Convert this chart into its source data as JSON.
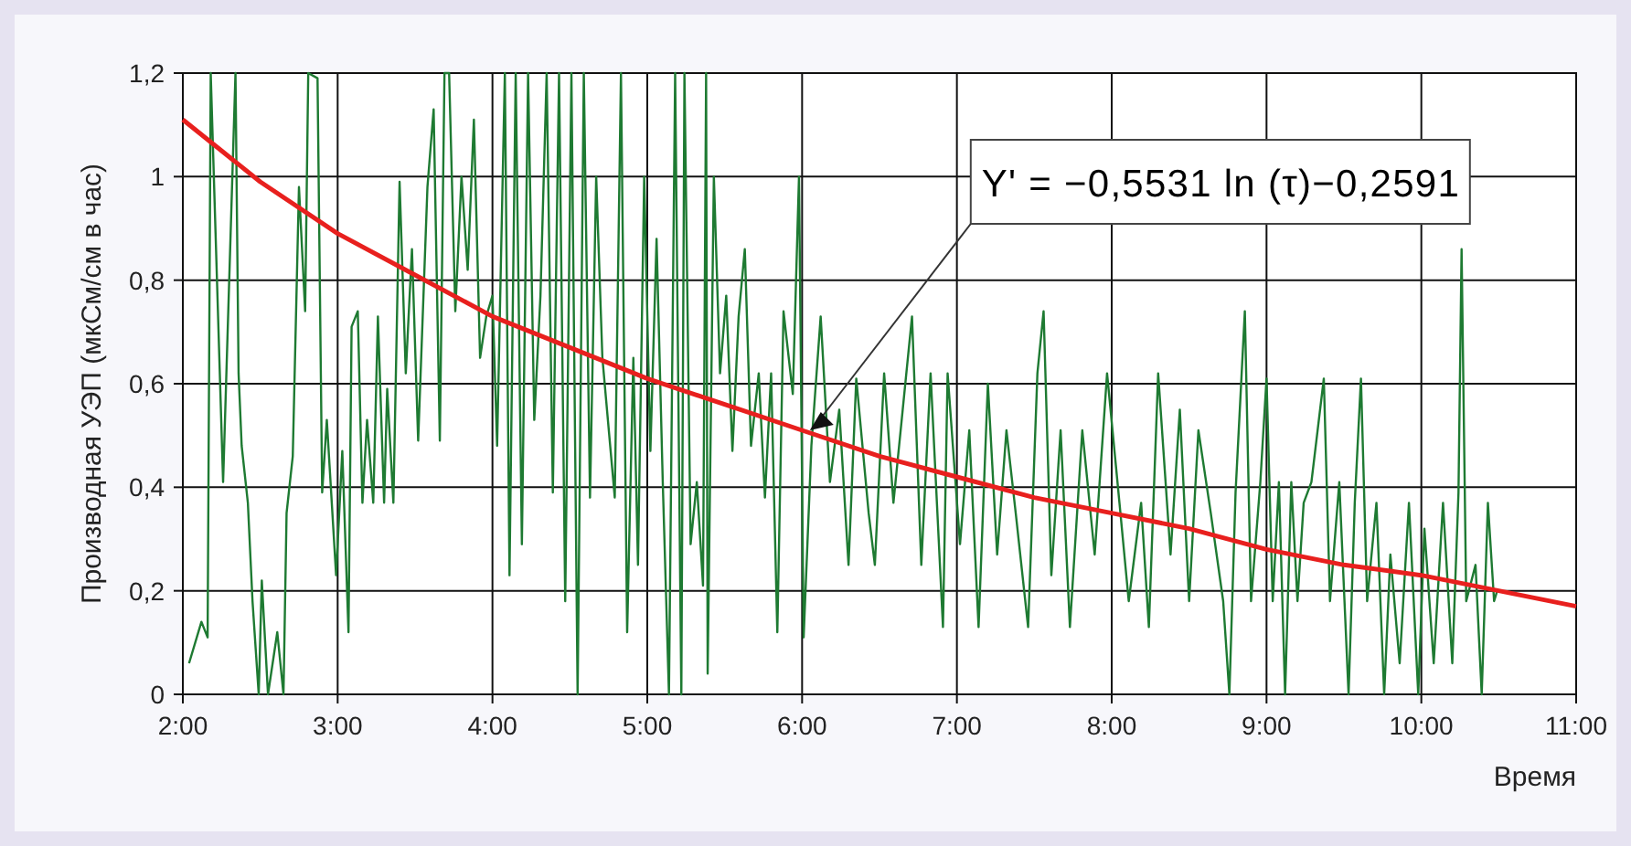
{
  "chart_data": {
    "type": "line",
    "xlabel": "Время",
    "ylabel": "Производная УЭП (мкСм/см в час)",
    "xlim": [
      2,
      11
    ],
    "ylim": [
      0,
      1.2
    ],
    "xticks": [
      {
        "value": 2,
        "label": "2:00"
      },
      {
        "value": 3,
        "label": "3:00"
      },
      {
        "value": 4,
        "label": "4:00"
      },
      {
        "value": 5,
        "label": "5:00"
      },
      {
        "value": 6,
        "label": "6:00"
      },
      {
        "value": 7,
        "label": "7:00"
      },
      {
        "value": 8,
        "label": "8:00"
      },
      {
        "value": 9,
        "label": "9:00"
      },
      {
        "value": 10,
        "label": "10:00"
      },
      {
        "value": 11,
        "label": "11:00"
      }
    ],
    "yticks": [
      0,
      {
        "value": 0.2,
        "label": "0,2"
      },
      {
        "value": 0.4,
        "label": "0,4"
      },
      {
        "value": 0.6,
        "label": "0,6"
      },
      {
        "value": 0.8,
        "label": "0,8"
      },
      1,
      {
        "value": 1.2,
        "label": "1,2"
      }
    ],
    "grid": true,
    "marker": "none",
    "line_style": "solid",
    "annotations": [
      {
        "text": "Y' = −0,5531 ln (τ)−0,2591",
        "x": 6.05,
        "y": 0.51
      }
    ],
    "series": [
      {
        "color": "#1e7a32",
        "x": [
          2.04,
          2.12,
          2.16,
          2.18,
          2.26,
          2.34,
          2.36,
          2.38,
          2.42,
          2.45,
          2.49,
          2.51,
          2.55,
          2.61,
          2.65,
          2.67,
          2.71,
          2.75,
          2.79,
          2.81,
          2.87,
          2.9,
          2.93,
          2.99,
          3.03,
          3.07,
          3.09,
          3.13,
          3.16,
          3.19,
          3.23,
          3.26,
          3.3,
          3.32,
          3.36,
          3.4,
          3.44,
          3.48,
          3.52,
          3.58,
          3.62,
          3.66,
          3.69,
          3.72,
          3.76,
          3.8,
          3.84,
          3.88,
          3.92,
          3.96,
          4,
          4.03,
          4.08,
          4.11,
          4.15,
          4.19,
          4.23,
          4.27,
          4.31,
          4.35,
          4.39,
          4.43,
          4.47,
          4.51,
          4.55,
          4.59,
          4.63,
          4.67,
          4.71,
          4.79,
          4.83,
          4.87,
          4.91,
          4.94,
          4.98,
          5.02,
          5.06,
          5.1,
          5.14,
          5.18,
          5.22,
          5.24,
          5.28,
          5.32,
          5.36,
          5.38,
          5.39,
          5.43,
          5.47,
          5.51,
          5.55,
          5.59,
          5.63,
          5.67,
          5.72,
          5.76,
          5.8,
          5.84,
          5.88,
          5.94,
          5.98,
          6.01,
          6.06,
          6.12,
          6.18,
          6.24,
          6.3,
          6.35,
          6.43,
          6.47,
          6.53,
          6.59,
          6.65,
          6.71,
          6.77,
          6.83,
          6.91,
          6.94,
          7.02,
          7.08,
          7.14,
          7.2,
          7.26,
          7.32,
          7.38,
          7.46,
          7.52,
          7.56,
          7.61,
          7.67,
          7.73,
          7.81,
          7.89,
          7.97,
          8.05,
          8.11,
          8.19,
          8.24,
          8.3,
          8.38,
          8.44,
          8.5,
          8.56,
          8.64,
          8.72,
          8.76,
          8.8,
          8.86,
          8.9,
          8.96,
          9,
          9.04,
          9.08,
          9.12,
          9.16,
          9.2,
          9.24,
          9.29,
          9.37,
          9.41,
          9.47,
          9.53,
          9.57,
          9.61,
          9.65,
          9.71,
          9.76,
          9.8,
          9.86,
          9.92,
          9.98,
          10.02,
          10.08,
          10.14,
          10.2,
          10.24,
          10.26,
          10.29,
          10.35,
          10.39,
          10.43,
          10.47,
          10.49
        ],
        "values": [
          0.06,
          0.14,
          0.11,
          1.2,
          0.41,
          1.2,
          0.62,
          0.48,
          0.37,
          0.18,
          0,
          0.22,
          0,
          0.12,
          0,
          0.35,
          0.46,
          0.98,
          0.74,
          1.2,
          1.19,
          0.39,
          0.53,
          0.23,
          0.47,
          0.12,
          0.71,
          0.74,
          0.37,
          0.53,
          0.37,
          0.73,
          0.37,
          0.59,
          0.37,
          0.99,
          0.62,
          0.86,
          0.49,
          0.98,
          1.13,
          0.49,
          1.2,
          1.2,
          0.74,
          1,
          0.82,
          1.11,
          0.65,
          0.73,
          0.77,
          0.48,
          1.2,
          0.23,
          1.2,
          0.29,
          1.2,
          0.53,
          0.77,
          1.2,
          0.39,
          1.2,
          0.18,
          1.2,
          0,
          1.2,
          0.38,
          1,
          0.65,
          0.38,
          1.2,
          0.12,
          0.65,
          0.25,
          1,
          0.47,
          0.88,
          0.41,
          0,
          1.2,
          0,
          1.2,
          0.29,
          0.41,
          0.21,
          1.2,
          0.04,
          1,
          0.62,
          0.77,
          0.47,
          0.73,
          0.86,
          0.48,
          0.62,
          0.38,
          0.62,
          0.12,
          0.74,
          0.58,
          1,
          0.11,
          0.48,
          0.73,
          0.41,
          0.55,
          0.25,
          0.61,
          0.35,
          0.25,
          0.62,
          0.37,
          0.55,
          0.73,
          0.25,
          0.62,
          0.13,
          0.62,
          0.29,
          0.51,
          0.13,
          0.6,
          0.27,
          0.51,
          0.35,
          0.13,
          0.62,
          0.74,
          0.23,
          0.51,
          0.13,
          0.51,
          0.27,
          0.62,
          0.37,
          0.18,
          0.37,
          0.13,
          0.62,
          0.27,
          0.55,
          0.18,
          0.51,
          0.35,
          0.18,
          0,
          0.39,
          0.74,
          0.18,
          0.41,
          0.61,
          0.18,
          0.41,
          0,
          0.41,
          0.18,
          0.37,
          0.41,
          0.61,
          0.18,
          0.41,
          0,
          0.37,
          0.61,
          0.18,
          0.37,
          0,
          0.27,
          0.06,
          0.37,
          0,
          0.32,
          0.06,
          0.37,
          0.06,
          0.39,
          0.86,
          0.18,
          0.25,
          0,
          0.37,
          0.18,
          0.2
        ]
      },
      {
        "color": "#e8201e",
        "x": [
          2,
          2.5,
          3,
          3.5,
          4,
          4.5,
          5,
          5.5,
          6,
          6.5,
          7,
          7.5,
          8,
          8.5,
          9,
          9.5,
          10,
          10.5,
          11
        ],
        "values": [
          1.11,
          0.99,
          0.89,
          0.81,
          0.73,
          0.67,
          0.61,
          0.56,
          0.51,
          0.46,
          0.42,
          0.38,
          0.35,
          0.32,
          0.28,
          0.25,
          0.23,
          0.2,
          0.17
        ]
      }
    ]
  }
}
